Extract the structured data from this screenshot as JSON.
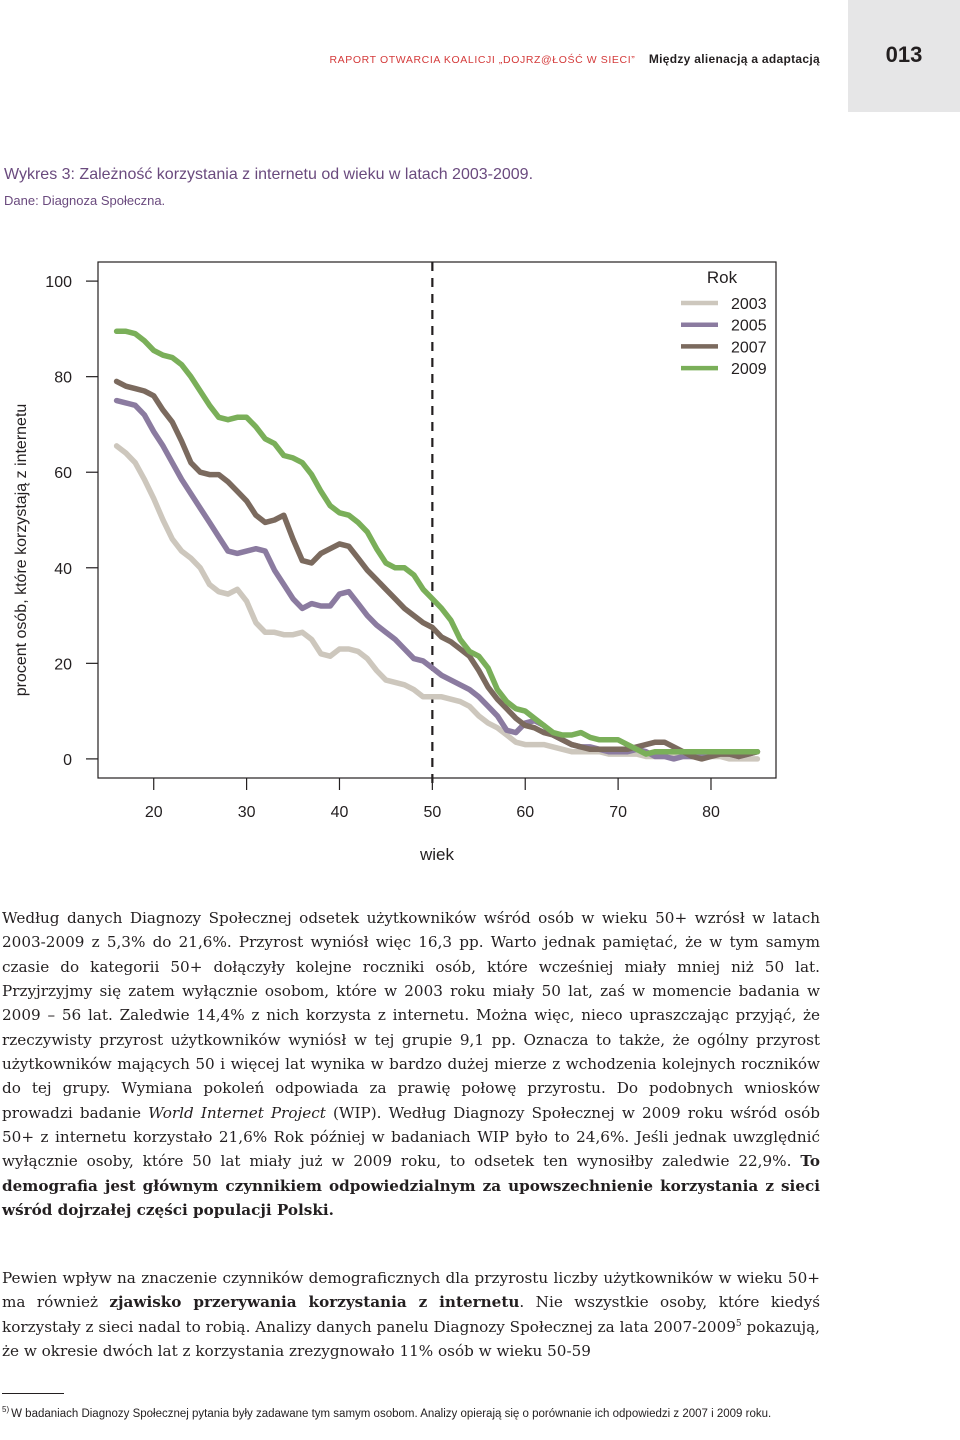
{
  "header": {
    "kicker": "RAPORT OTWARCIA KOALICJI „DOJRZ@ŁOŚĆ W SIECI”",
    "section": "Między alienacją a adaptacją",
    "page_number": "013"
  },
  "figure": {
    "title": "Wykres 3: Zależność korzystania z internetu od wieku w latach 2003-2009.",
    "source": "Dane: Diagnoza Społeczna."
  },
  "chart_data": {
    "type": "line",
    "xlabel": "wiek",
    "ylabel": "procent osób, które korzystają z internetu",
    "xlim": [
      14,
      87
    ],
    "ylim": [
      -4,
      104
    ],
    "x_ticks": [
      "20",
      "30",
      "40",
      "50",
      "60",
      "70",
      "80"
    ],
    "y_ticks": [
      "0",
      "20",
      "40",
      "60",
      "80",
      "100"
    ],
    "x_tick_values": [
      20,
      30,
      40,
      50,
      60,
      70,
      80
    ],
    "y_tick_values": [
      0,
      20,
      40,
      60,
      80,
      100
    ],
    "reference_line_x": 50,
    "grid": false,
    "legend_title": "Rok",
    "legend_position": "top-right",
    "x": [
      16,
      17,
      18,
      19,
      20,
      21,
      22,
      23,
      24,
      25,
      26,
      27,
      28,
      29,
      30,
      31,
      32,
      33,
      34,
      35,
      36,
      37,
      38,
      39,
      40,
      41,
      42,
      43,
      44,
      45,
      46,
      47,
      48,
      49,
      50,
      51,
      52,
      53,
      54,
      55,
      56,
      57,
      58,
      59,
      60,
      61,
      62,
      63,
      64,
      65,
      66,
      67,
      68,
      69,
      70,
      71,
      72,
      73,
      74,
      75,
      76,
      77,
      78,
      79,
      80,
      81,
      82,
      83,
      84,
      85
    ],
    "series": [
      {
        "name": "2003",
        "color": "#cdc7bd",
        "values": [
          65.5,
          64,
          62,
          58.5,
          54.5,
          50,
          46,
          43.5,
          42,
          40,
          36.5,
          35,
          34.5,
          35.5,
          33,
          28.5,
          26.5,
          26.5,
          26,
          26,
          26.5,
          25,
          22,
          21.5,
          23,
          23,
          22.5,
          21,
          18.5,
          16.5,
          16,
          15.5,
          14.5,
          13,
          13,
          13,
          12.5,
          12,
          11,
          9,
          7.5,
          6.5,
          5,
          3.5,
          3,
          3,
          3,
          2.5,
          2,
          1.5,
          1.5,
          1.5,
          1.5,
          1,
          1,
          1,
          1,
          0.5,
          0.5,
          0.5,
          0.5,
          0.5,
          0.5,
          0.5,
          0.5,
          0.5,
          0,
          0,
          0,
          0
        ]
      },
      {
        "name": "2005",
        "color": "#8b7ba0",
        "values": [
          75,
          74.5,
          74,
          72,
          68.5,
          65.5,
          62,
          58.5,
          55.5,
          52.5,
          49.5,
          46.5,
          43.5,
          43,
          43.5,
          44,
          43.5,
          39.5,
          36.5,
          33.5,
          31.5,
          32.5,
          32,
          32,
          34.5,
          35,
          32.5,
          30,
          28,
          26.5,
          25,
          23,
          21,
          20.5,
          19,
          17.5,
          16.5,
          15.5,
          14.5,
          13,
          11,
          9,
          6,
          5.5,
          7.5,
          8,
          7,
          5,
          4,
          3,
          2.5,
          2.5,
          2,
          1.5,
          1.5,
          1.5,
          2,
          1.5,
          0.5,
          0.5,
          0,
          0.5,
          0.5,
          0.5,
          1,
          1.5,
          1,
          0.5,
          1,
          1.5
        ]
      },
      {
        "name": "2007",
        "color": "#7b6a5e",
        "values": [
          79,
          78,
          77.5,
          77,
          76,
          73,
          70.5,
          66.5,
          62,
          60,
          59.5,
          59.5,
          58,
          56,
          54,
          51,
          49.5,
          50,
          51,
          46,
          41.5,
          41,
          43,
          44,
          45,
          44.5,
          42,
          39.5,
          37.5,
          35.5,
          33.5,
          31.5,
          30,
          28.5,
          27.5,
          25.5,
          24.5,
          23,
          21.5,
          18.5,
          15,
          12.5,
          10.5,
          8.5,
          7,
          6.5,
          5.5,
          5,
          4,
          3,
          2.5,
          2,
          2,
          2,
          2,
          2,
          2.5,
          3,
          3.5,
          3.5,
          2.5,
          1.5,
          0.5,
          0,
          0.5,
          1,
          1,
          0.5,
          1,
          1.5
        ]
      },
      {
        "name": "2009",
        "color": "#7aaf59",
        "values": [
          89.5,
          89.5,
          89,
          87.5,
          85.5,
          84.5,
          84,
          82.5,
          80,
          77,
          74,
          71.5,
          71,
          71.5,
          71.5,
          69.5,
          67,
          66,
          63.5,
          63,
          62,
          59.5,
          56,
          53,
          51.5,
          51,
          49.5,
          47.5,
          44,
          41,
          40,
          40,
          38.5,
          35.5,
          33.5,
          31.5,
          29,
          25,
          22.5,
          21.5,
          19,
          14.5,
          12,
          10.5,
          10,
          8.5,
          7,
          5.5,
          5,
          5,
          5.5,
          4.5,
          4,
          4,
          4,
          3,
          2,
          1,
          1.5,
          1.5,
          1.5,
          1.5,
          1.5,
          1.5,
          1.5,
          1.5,
          1.5,
          1.5,
          1.5,
          1.5
        ]
      }
    ]
  },
  "text": {
    "para1": "Według danych Diagnozy Społecznej odsetek użytkowników wśród osób w wieku 50+ wzrósł w latach 2003-2009 z 5,3% do 21,6%. Przyrost wyniósł więc 16,3 pp. Warto jednak pamiętać, że w tym samym czasie do kategorii 50+ dołączyły kolejne roczniki osób, które wcześniej miały mniej niż 50 lat. Przyjrzyjmy się zatem wyłącznie osobom, które w 2003 roku miały 50 lat, zaś w momencie badania w 2009 – 56 lat. Zaledwie 14,4% z nich korzysta z internetu. Można więc, nieco upraszczając przyjąć, że rzeczywisty przyrost użytkowników wyniósł w tej grupie 9,1 pp. Oznacza to także, że ogólny przyrost użytkowników mających 50 i więcej lat wynika w bardzo dużej mierze z wchodzenia kolejnych roczników do tej grupy. Wymiana pokoleń odpowiada za prawię połowę przyrostu. Do podobnych wniosków prowadzi badanie",
    "para1_italic": "World Internet Project",
    "para1_cont": "(WIP). Według Diagnozy Społecznej w 2009 roku wśród osób 50+ z internetu korzystało 21,6% Rok później w badaniach WIP było to 24,6%. Jeśli jednak uwzględnić wyłącznie osoby, które 50 lat miały już w 2009 roku, to odsetek ten wynosiłby zaledwie 22,9%.",
    "para1_bold": "To demografia jest głównym czynnikiem odpowiedzialnym za upowszechnienie korzystania z sieci wśród dojrzałej części populacji Polski.",
    "para2_a": "Pewien wpływ na znaczenie czynników demograficznych dla przyrostu liczby użytkowników w wieku 50+ ma również",
    "para2_bold": "zjawisko przerywania korzystania z internetu",
    "para2_b": ". Nie wszystkie osoby, które kiedyś korzystały z sieci nadal to robią. Analizy danych panelu Diagnozy Społecznej za lata 2007-2009",
    "para2_sup": "5",
    "para2_c": " pokazują, że w okresie dwóch lat z korzystania zrezygnowało 11% osób w wieku 50-59"
  },
  "footnote": {
    "number": "5)",
    "text": "W badaniach Diagnozy Społecznej pytania były zadawane tym samym osobom. Analizy opierają się o porównanie ich odpowiedzi z 2007 i 2009 roku."
  }
}
